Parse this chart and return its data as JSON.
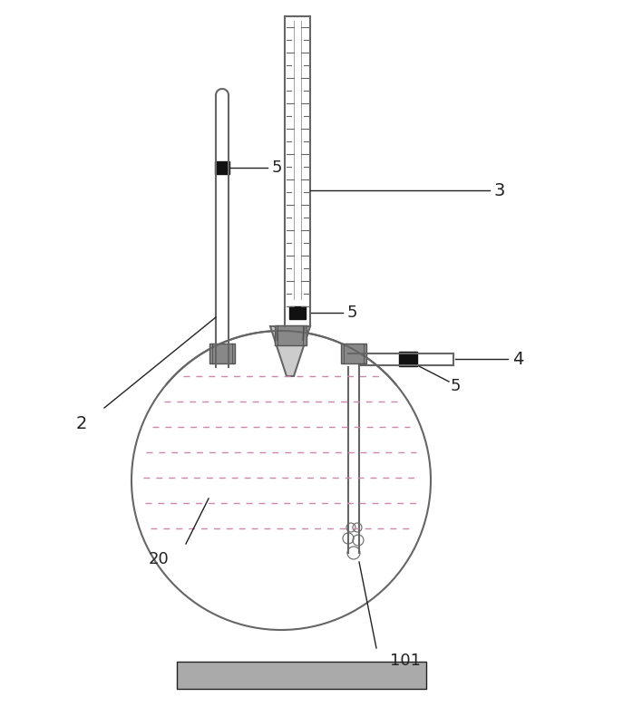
{
  "line_color": "#666666",
  "dark_color": "#222222",
  "clamp_color": "#888888",
  "dashed_color": "#cc88aa",
  "base_color": "#aaaaaa",
  "stopcock_color": "#111111",
  "font_size": 13,
  "bg": "white"
}
